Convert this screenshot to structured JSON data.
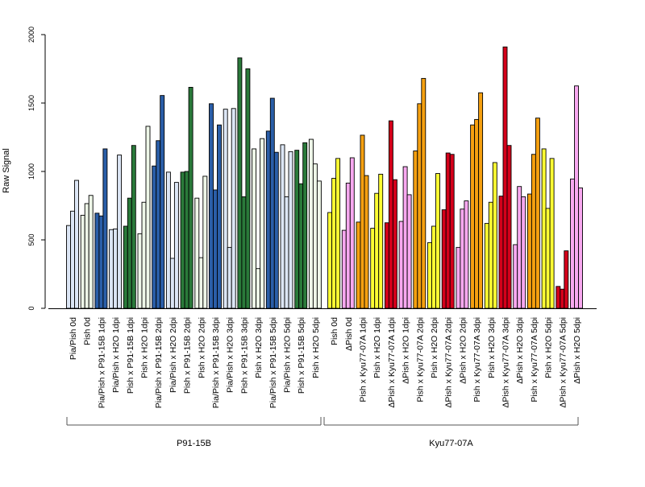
{
  "chart_data": {
    "type": "bar",
    "ylabel": "Raw Signal",
    "ylim": [
      0,
      2000
    ],
    "yticks": [
      0,
      500,
      1000,
      1500,
      2000
    ],
    "grid": false,
    "legend": "none",
    "bars_per_group": 3,
    "categories": [
      "Pia/Pish 0d",
      "Pish 0d",
      "Pia/Pish x P91-15B 1dpi",
      "Pia/Pish x H2O 1dpi",
      "Pish x P91-15B 1dpi",
      "Pish x H2O 1dpi",
      "Pia/Pish x P91-15B 2dpi",
      "Pia/Pish x H2O 2dpi",
      "Pish x P91-15B 2dpi",
      "Pish x H2O 2dpi",
      "Pia/Pish x P91-15B 3dpi",
      "Pia/Pish x H2O 3dpi",
      "Pish x P91-15B 3dpi",
      "Pish x H2O 3dpi",
      "Pia/Pish x P91-15B 5dpi",
      "Pia/Pish x H2O 5dpi",
      "Pish x P91-15B 5dpi",
      "Pish x H2O 5dpi",
      "Pish 0d",
      "ΔPish 0d",
      "Pish x Kyu77-07A 1dpi",
      "Pish x H2O 1dpi",
      "ΔPish x Kyu77-07A 1dpi",
      "ΔPish x H2O 1dpi",
      "Pish x Kyu77-07A 2dpi",
      "Pish x H2O 2dpi",
      "ΔPish x Kyu77-07A 2dpi",
      "ΔPish x H2O 2dpi",
      "Pish x Kyu77-07A 3dpi",
      "Pish x H2O 3dpi",
      "ΔPish x Kyu77-07A 3dpi",
      "ΔPish x H2O 3dpi",
      "Pish x Kyu77-07A 5dpi",
      "Pish x H2O 5dpi",
      "ΔPish x Kyu77-07A 5dpi",
      "ΔPish x H2O 5dpi"
    ],
    "colors": [
      "#dce6f5",
      "#eef7e8",
      "#2a5ea8",
      "#dce6f5",
      "#2a7a3a",
      "#eef7e8",
      "#2a5ea8",
      "#dce6f5",
      "#2a7a3a",
      "#eef7e8",
      "#2a5ea8",
      "#dce6f5",
      "#2a7a3a",
      "#eef7e8",
      "#2a5ea8",
      "#dce6f5",
      "#2a7a3a",
      "#eef7e8",
      "#ffff33",
      "#f8a8f0",
      "#f5a010",
      "#ffff33",
      "#d4001a",
      "#f8a8f0",
      "#f5a010",
      "#ffff33",
      "#d4001a",
      "#f8a8f0",
      "#f5a010",
      "#ffff33",
      "#d4001a",
      "#f8a8f0",
      "#f5a010",
      "#ffff33",
      "#d4001a",
      "#f8a8f0"
    ],
    "values": [
      [
        605,
        710,
        935
      ],
      [
        680,
        765,
        825
      ],
      [
        695,
        675,
        1165
      ],
      [
        575,
        580,
        1120
      ],
      [
        600,
        805,
        1190
      ],
      [
        545,
        775,
        1330
      ],
      [
        1040,
        1225,
        1555
      ],
      [
        995,
        365,
        920
      ],
      [
        995,
        1000,
        1615
      ],
      [
        805,
        370,
        965
      ],
      [
        1495,
        865,
        1340
      ],
      [
        1455,
        445,
        1460
      ],
      [
        1830,
        815,
        1750
      ],
      [
        1165,
        290,
        1240
      ],
      [
        1295,
        1535,
        1140
      ],
      [
        1195,
        815,
        1145
      ],
      [
        1155,
        910,
        1210
      ],
      [
        1235,
        1055,
        930
      ],
      [
        700,
        950,
        1095
      ],
      [
        570,
        915,
        1100
      ],
      [
        630,
        1265,
        970
      ],
      [
        585,
        840,
        980
      ],
      [
        625,
        1370,
        940
      ],
      [
        635,
        1035,
        830
      ],
      [
        1150,
        1495,
        1680
      ],
      [
        480,
        600,
        985
      ],
      [
        720,
        1135,
        1125
      ],
      [
        445,
        725,
        785
      ],
      [
        1340,
        1380,
        1575
      ],
      [
        620,
        775,
        1065
      ],
      [
        820,
        1910,
        1190
      ],
      [
        465,
        890,
        815
      ],
      [
        835,
        1125,
        1390
      ],
      [
        1165,
        730,
        1095
      ],
      [
        160,
        140,
        420
      ],
      [
        945,
        1625,
        880
      ]
    ],
    "groups": [
      {
        "label": "P91-15B",
        "from": 0,
        "to": 17
      },
      {
        "label": "Kyu77-07A",
        "from": 18,
        "to": 35
      }
    ]
  }
}
